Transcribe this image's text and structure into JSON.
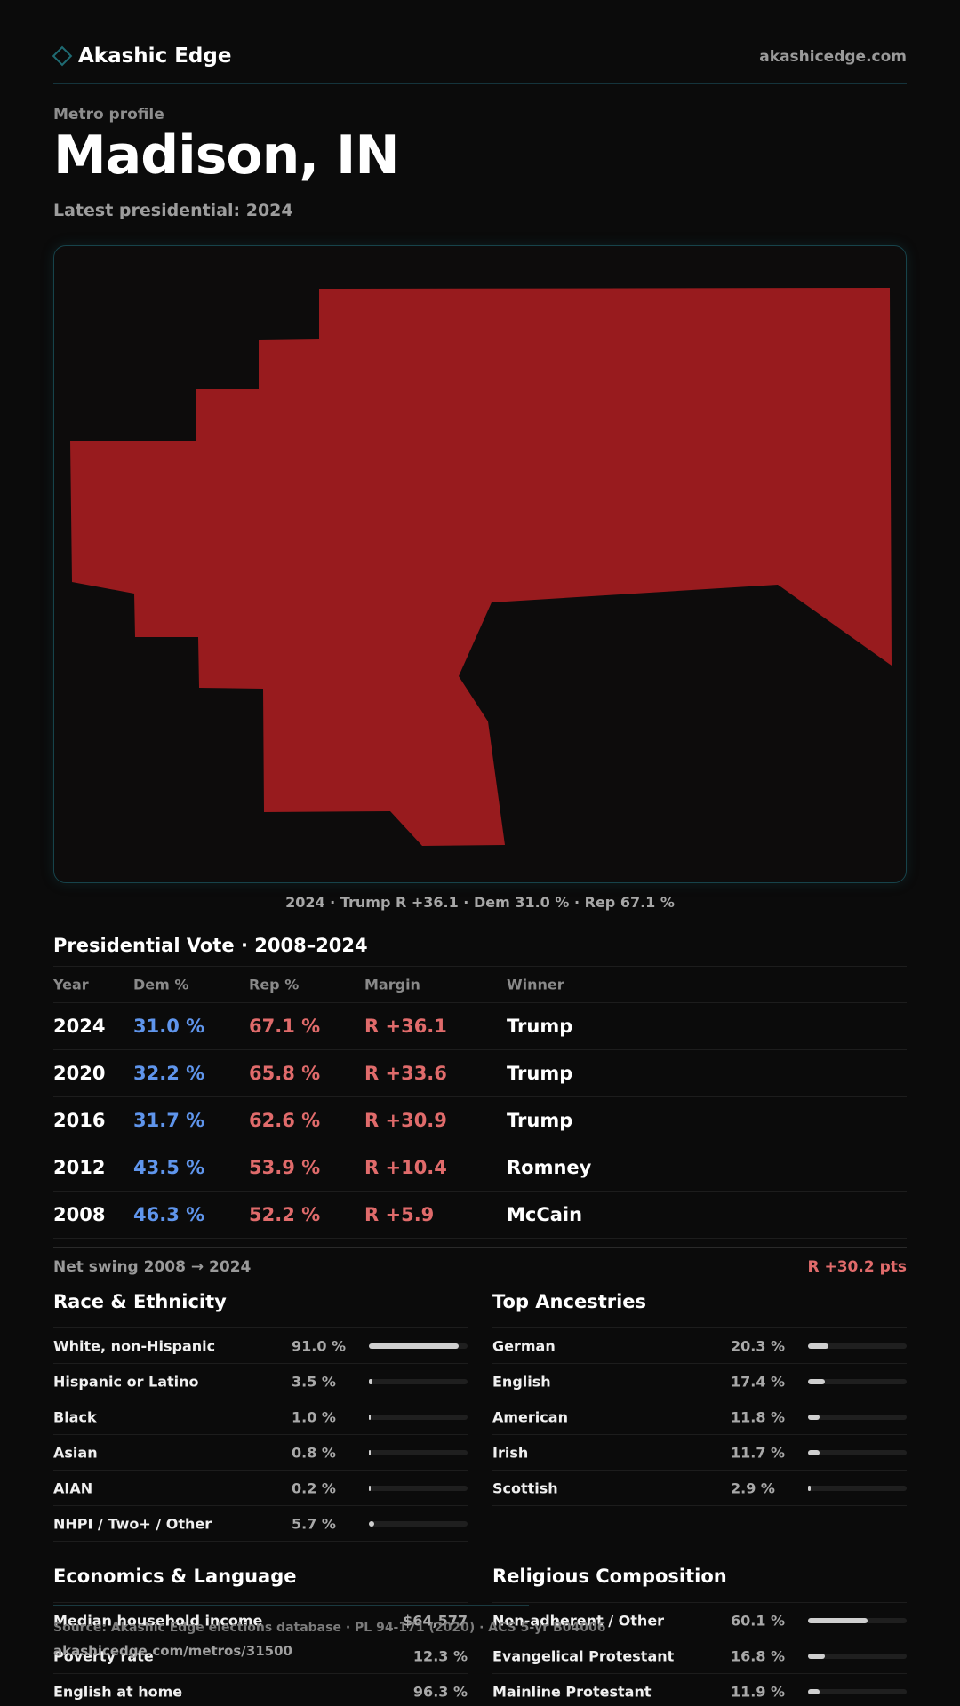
{
  "header": {
    "brand": "Akashic Edge",
    "site": "akashicedge.com"
  },
  "hero": {
    "eyebrow": "Metro profile",
    "title": "Madison, IN",
    "subtitle": "Latest presidential: 2024"
  },
  "map": {
    "fill_color": "#981b1e",
    "caption": "2024 · Trump R +36.1 · Dem 31.0 % · Rep 67.1 %"
  },
  "presidential": {
    "title": "Presidential Vote · 2008–2024",
    "columns": [
      "Year",
      "Dem %",
      "Rep %",
      "Margin",
      "Winner"
    ],
    "rows": [
      {
        "year": "2024",
        "dem": "31.0 %",
        "rep": "67.1 %",
        "margin": "R +36.1",
        "winner": "Trump"
      },
      {
        "year": "2020",
        "dem": "32.2 %",
        "rep": "65.8 %",
        "margin": "R +33.6",
        "winner": "Trump"
      },
      {
        "year": "2016",
        "dem": "31.7 %",
        "rep": "62.6 %",
        "margin": "R +30.9",
        "winner": "Trump"
      },
      {
        "year": "2012",
        "dem": "43.5 %",
        "rep": "53.9 %",
        "margin": "R +10.4",
        "winner": "Romney"
      },
      {
        "year": "2008",
        "dem": "46.3 %",
        "rep": "52.2 %",
        "margin": "R +5.9",
        "winner": "McCain"
      }
    ],
    "swing_label": "Net swing 2008 → 2024",
    "swing_value": "R +30.2 pts"
  },
  "race": {
    "title": "Race & Ethnicity",
    "rows": [
      {
        "label": "White, non-Hispanic",
        "value": "91.0 %",
        "pct": 91.0
      },
      {
        "label": "Hispanic or Latino",
        "value": "3.5 %",
        "pct": 3.5
      },
      {
        "label": "Black",
        "value": "1.0 %",
        "pct": 1.0
      },
      {
        "label": "Asian",
        "value": "0.8 %",
        "pct": 0.8
      },
      {
        "label": "AIAN",
        "value": "0.2 %",
        "pct": 0.2
      },
      {
        "label": "NHPI / Two+ / Other",
        "value": "5.7 %",
        "pct": 5.7
      }
    ]
  },
  "ancestry": {
    "title": "Top Ancestries",
    "rows": [
      {
        "label": "German",
        "value": "20.3 %",
        "pct": 20.3
      },
      {
        "label": "English",
        "value": "17.4 %",
        "pct": 17.4
      },
      {
        "label": "American",
        "value": "11.8 %",
        "pct": 11.8
      },
      {
        "label": "Irish",
        "value": "11.7 %",
        "pct": 11.7
      },
      {
        "label": "Scottish",
        "value": "2.9 %",
        "pct": 2.9
      }
    ]
  },
  "economics": {
    "title": "Economics & Language",
    "rows": [
      {
        "label": "Median household income",
        "value": "$64,577"
      },
      {
        "label": "Poverty rate",
        "value": "12.3 %"
      },
      {
        "label": "English at home",
        "value": "96.3 %"
      }
    ]
  },
  "religion": {
    "title": "Religious Composition",
    "rows": [
      {
        "label": "Non-adherent / Other",
        "value": "60.1 %",
        "pct": 60.1
      },
      {
        "label": "Evangelical Protestant",
        "value": "16.8 %",
        "pct": 16.8
      },
      {
        "label": "Mainline Protestant",
        "value": "11.9 %",
        "pct": 11.9
      }
    ]
  },
  "footer": {
    "source": "Source: Akashic Edge elections database · PL 94-171 (2020) · ACS 5-yr B04006",
    "url": "akashicedge.com/metros/31500"
  }
}
